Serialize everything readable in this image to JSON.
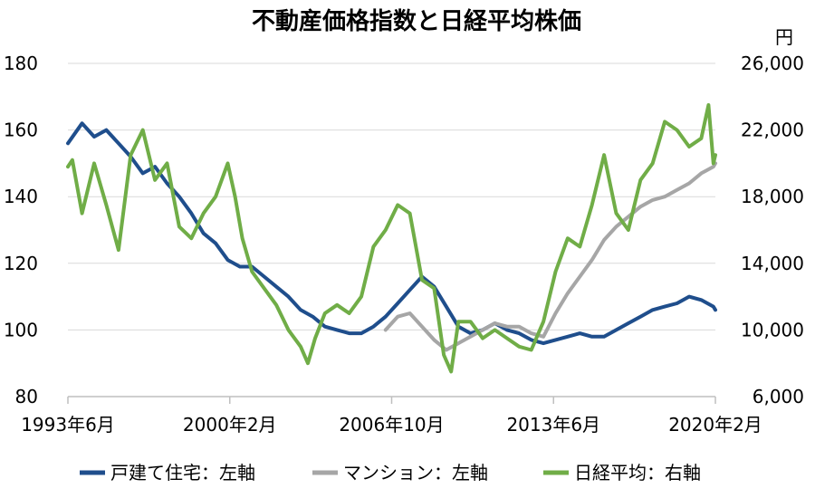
{
  "chart_data": {
    "type": "line",
    "title": "不動産価格指数と日経平均株価",
    "y2_unit": "円",
    "x_tick_labels": [
      "1993年6月",
      "2000年2月",
      "2006年10月",
      "2013年6月",
      "2020年2月"
    ],
    "x_ticks": [
      1993.417,
      2000.083,
      2006.75,
      2013.417,
      2020.083
    ],
    "xlim": [
      1993.417,
      2020.083
    ],
    "y_left": {
      "ylim": [
        80,
        180
      ],
      "ticks": [
        80,
        100,
        120,
        140,
        160,
        180
      ],
      "tick_labels": [
        "80",
        "100",
        "120",
        "140",
        "160",
        "180"
      ]
    },
    "y_right": {
      "ylim": [
        6000,
        26000
      ],
      "ticks": [
        6000,
        10000,
        14000,
        18000,
        22000,
        26000
      ],
      "tick_labels": [
        "6,000",
        "10,000",
        "14,000",
        "18,000",
        "22,000",
        "26,000"
      ]
    },
    "grid": true,
    "legend_position": "bottom",
    "series": [
      {
        "name": "戸建て住宅：左軸",
        "axis": "left",
        "color": "#1f4e8c",
        "x": [
          1993.417,
          1994.0,
          1994.5,
          1995.0,
          1995.5,
          1996.0,
          1996.5,
          1997.0,
          1997.5,
          1998.0,
          1998.5,
          1999.0,
          1999.5,
          2000.0,
          2000.5,
          2001.0,
          2001.5,
          2002.0,
          2002.5,
          2003.0,
          2003.5,
          2004.0,
          2004.5,
          2005.0,
          2005.5,
          2006.0,
          2006.5,
          2007.0,
          2007.5,
          2008.0,
          2008.5,
          2009.0,
          2009.5,
          2010.0,
          2010.5,
          2011.0,
          2011.5,
          2012.0,
          2012.5,
          2013.0,
          2013.5,
          2014.0,
          2014.5,
          2015.0,
          2015.5,
          2016.0,
          2016.5,
          2017.0,
          2017.5,
          2018.0,
          2018.5,
          2019.0,
          2019.5,
          2020.0,
          2020.083
        ],
        "values": [
          156,
          162,
          158,
          160,
          156,
          152,
          147,
          149,
          144,
          140,
          135,
          129,
          126,
          121,
          119,
          119,
          116,
          113,
          110,
          106,
          104,
          101,
          100,
          99,
          99,
          101,
          104,
          108,
          112,
          116,
          113,
          107,
          101,
          99,
          100,
          102,
          100,
          99,
          97,
          96,
          97,
          98,
          99,
          98,
          98,
          100,
          102,
          104,
          106,
          107,
          108,
          110,
          109,
          107,
          106
        ]
      },
      {
        "name": "マンション：左軸",
        "axis": "left",
        "color": "#a6a6a6",
        "x": [
          2006.5,
          2007.0,
          2007.5,
          2008.0,
          2008.5,
          2009.0,
          2009.5,
          2010.0,
          2010.5,
          2011.0,
          2011.5,
          2012.0,
          2012.5,
          2013.0,
          2013.5,
          2014.0,
          2014.5,
          2015.0,
          2015.5,
          2016.0,
          2016.5,
          2017.0,
          2017.5,
          2018.0,
          2018.5,
          2019.0,
          2019.5,
          2020.0,
          2020.083
        ],
        "values": [
          100,
          104,
          105,
          101,
          97,
          94,
          96,
          98,
          100,
          102,
          101,
          101,
          99,
          98,
          105,
          111,
          116,
          121,
          127,
          131,
          134,
          137,
          139,
          140,
          142,
          144,
          147,
          149,
          150
        ]
      },
      {
        "name": "日経平均：右軸",
        "axis": "right",
        "color": "#70ad47",
        "x": [
          1993.417,
          1993.6,
          1994.0,
          1994.5,
          1995.0,
          1995.5,
          1996.0,
          1996.5,
          1997.0,
          1997.5,
          1998.0,
          1998.5,
          1999.0,
          1999.5,
          2000.0,
          2000.3,
          2000.6,
          2001.0,
          2001.5,
          2002.0,
          2002.5,
          2003.0,
          2003.3,
          2003.6,
          2004.0,
          2004.5,
          2005.0,
          2005.5,
          2006.0,
          2006.5,
          2007.0,
          2007.5,
          2008.0,
          2008.5,
          2008.9,
          2009.2,
          2009.5,
          2010.0,
          2010.5,
          2011.0,
          2011.5,
          2012.0,
          2012.5,
          2013.0,
          2013.5,
          2014.0,
          2014.5,
          2015.0,
          2015.5,
          2016.0,
          2016.5,
          2017.0,
          2017.5,
          2018.0,
          2018.5,
          2019.0,
          2019.5,
          2019.8,
          2020.0,
          2020.083
        ],
        "values": [
          19800,
          20200,
          17000,
          20000,
          17500,
          14800,
          20500,
          22000,
          19000,
          20000,
          16200,
          15500,
          17000,
          18000,
          20000,
          18000,
          15500,
          13500,
          12500,
          11500,
          10000,
          9000,
          8000,
          9500,
          11000,
          11500,
          11000,
          12000,
          15000,
          16000,
          17500,
          17000,
          13000,
          12500,
          8500,
          7500,
          10500,
          10500,
          9500,
          10000,
          9500,
          9000,
          8800,
          10500,
          13500,
          15500,
          15000,
          17500,
          20500,
          17000,
          16000,
          19000,
          20000,
          22500,
          22000,
          21000,
          21500,
          23500,
          20000,
          20500
        ]
      }
    ]
  }
}
